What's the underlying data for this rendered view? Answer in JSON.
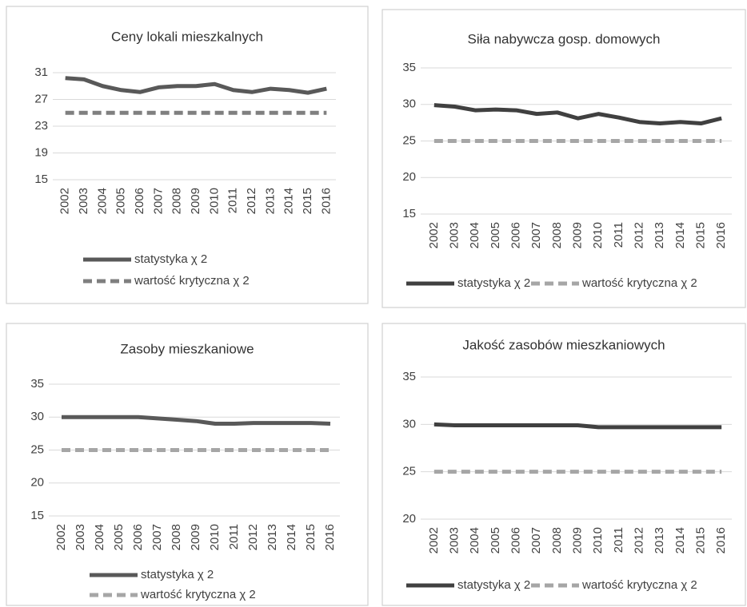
{
  "chart_data": [
    {
      "type": "line",
      "title": "Ceny lokali mieszkalnych",
      "categories": [
        "2002",
        "2003",
        "2004",
        "2005",
        "2006",
        "2007",
        "2008",
        "2009",
        "2010",
        "2011",
        "2012",
        "2013",
        "2014",
        "2015",
        "2016"
      ],
      "series": [
        {
          "name": "statystyka χ 2",
          "color": "#595959",
          "dash": false,
          "values": [
            30.2,
            30.0,
            29.0,
            28.4,
            28.1,
            28.8,
            29.0,
            29.0,
            29.3,
            28.4,
            28.1,
            28.6,
            28.4,
            28.0,
            28.6
          ]
        },
        {
          "name": "wartość krytyczna χ 2",
          "color": "#7f7f7f",
          "dash": true,
          "values": [
            25,
            25,
            25,
            25,
            25,
            25,
            25,
            25,
            25,
            25,
            25,
            25,
            25,
            25,
            25
          ]
        }
      ],
      "ylim": [
        15,
        31
      ],
      "yticks": [
        15,
        19,
        23,
        27,
        31
      ],
      "grid": true,
      "legend": "bottom"
    },
    {
      "type": "line",
      "title": "Siła nabywcza gosp. domowych",
      "categories": [
        "2002",
        "2003",
        "2004",
        "2005",
        "2006",
        "2007",
        "2008",
        "2009",
        "2010",
        "2011",
        "2012",
        "2013",
        "2014",
        "2015",
        "2016"
      ],
      "series": [
        {
          "name": "statystyka χ 2",
          "color": "#404040",
          "dash": false,
          "values": [
            29.9,
            29.7,
            29.2,
            29.3,
            29.2,
            28.7,
            28.9,
            28.1,
            28.7,
            28.2,
            27.6,
            27.4,
            27.6,
            27.4,
            28.1
          ]
        },
        {
          "name": "wartość krytyczna χ 2",
          "color": "#a6a6a6",
          "dash": true,
          "values": [
            25,
            25,
            25,
            25,
            25,
            25,
            25,
            25,
            25,
            25,
            25,
            25,
            25,
            25,
            25
          ]
        }
      ],
      "ylim": [
        15,
        35
      ],
      "yticks": [
        15,
        20,
        25,
        30,
        35
      ],
      "grid": true,
      "legend": "bottom"
    },
    {
      "type": "line",
      "title": "Zasoby mieszkaniowe",
      "categories": [
        "2002",
        "2003",
        "2004",
        "2005",
        "2006",
        "2007",
        "2008",
        "2009",
        "2010",
        "2011",
        "2012",
        "2013",
        "2014",
        "2015",
        "2016"
      ],
      "series": [
        {
          "name": "statystyka χ 2",
          "color": "#595959",
          "dash": false,
          "values": [
            30,
            30,
            30,
            30,
            30,
            29.8,
            29.6,
            29.4,
            29.0,
            29.0,
            29.1,
            29.1,
            29.1,
            29.1,
            29.0
          ]
        },
        {
          "name": "wartość krytyczna χ 2",
          "color": "#a6a6a6",
          "dash": true,
          "values": [
            25,
            25,
            25,
            25,
            25,
            25,
            25,
            25,
            25,
            25,
            25,
            25,
            25,
            25,
            25
          ]
        }
      ],
      "ylim": [
        15,
        35
      ],
      "yticks": [
        15,
        20,
        25,
        30,
        35
      ],
      "grid": true,
      "legend": "bottom"
    },
    {
      "type": "line",
      "title": "Jakość zasobów mieszkaniowych",
      "categories": [
        "2002",
        "2003",
        "2004",
        "2005",
        "2006",
        "2007",
        "2008",
        "2009",
        "2010",
        "2011",
        "2012",
        "2013",
        "2014",
        "2015",
        "2016"
      ],
      "series": [
        {
          "name": "statystyka χ 2",
          "color": "#404040",
          "dash": false,
          "values": [
            30,
            29.9,
            29.9,
            29.9,
            29.9,
            29.9,
            29.9,
            29.9,
            29.7,
            29.7,
            29.7,
            29.7,
            29.7,
            29.7,
            29.7
          ]
        },
        {
          "name": "wartość krytyczna χ 2",
          "color": "#a6a6a6",
          "dash": true,
          "values": [
            25,
            25,
            25,
            25,
            25,
            25,
            25,
            25,
            25,
            25,
            25,
            25,
            25,
            25,
            25
          ]
        }
      ],
      "ylim": [
        20,
        35
      ],
      "yticks": [
        20,
        25,
        30,
        35
      ],
      "grid": true,
      "legend": "bottom"
    }
  ]
}
